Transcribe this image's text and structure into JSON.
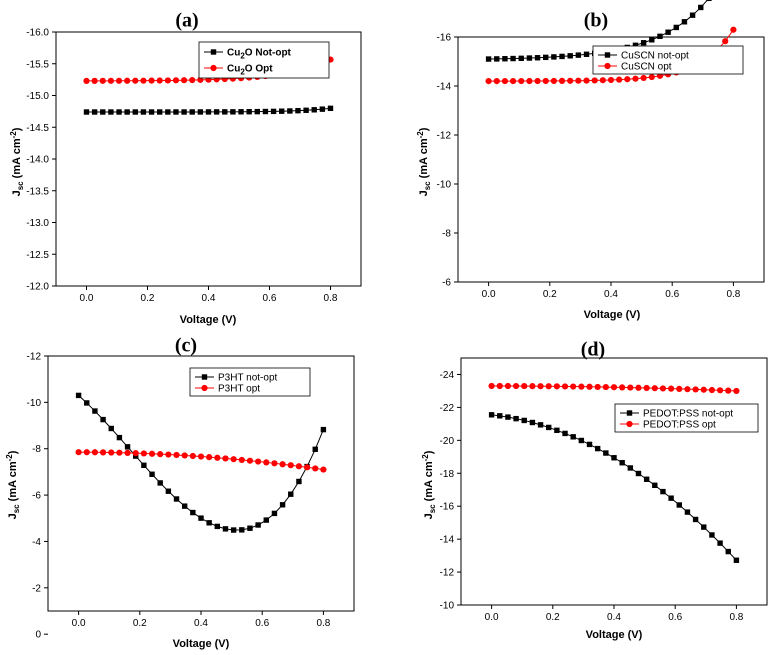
{
  "chart_data": [
    {
      "type": "line",
      "panel": "(a)",
      "xlabel": "Voltage (V)",
      "ylabel": "J_sc (mA cm^-2)",
      "ylabel_parts": {
        "j": "J",
        "sub": "sc",
        "unit": " (mA cm",
        "sup": "-2",
        "close": ")"
      },
      "xlim": [
        -0.1,
        0.9
      ],
      "ylim": [
        -12.0,
        -16.0
      ],
      "y_inverted": true,
      "xticks": [
        0.0,
        0.2,
        0.4,
        0.6,
        0.8
      ],
      "xtick_labels": [
        "0.0",
        "0.2",
        "0.4",
        "0.6",
        "0.8"
      ],
      "yticks": [
        -12.0,
        -12.5,
        -13.0,
        -13.5,
        -14.0,
        -14.5,
        -15.0,
        -15.5,
        -16.0
      ],
      "ytick_labels": [
        "-12.0",
        "-12.5",
        "-13.0",
        "-13.5",
        "-14.0",
        "-14.5",
        "-15.0",
        "-15.5",
        "-16.0"
      ],
      "legend_position": "top-right",
      "legend_bold": true,
      "series": [
        {
          "name": "Cu2O Not-opt",
          "label_parts": {
            "pre": "Cu",
            "sub": "2",
            "post": "O Not-opt"
          },
          "color": "#000000",
          "marker": "square",
          "fn": {
            "kind": "exp",
            "v0": -14.74,
            "a": -2.9e-05,
            "b": 9.5
          }
        },
        {
          "name": "Cu2O Opt",
          "label_parts": {
            "pre": "Cu",
            "sub": "2",
            "post": "O Opt"
          },
          "color": "#ff0000",
          "marker": "circle",
          "fn": {
            "kind": "exp",
            "v0": -15.23,
            "a": -0.00135,
            "b": 6.9
          }
        }
      ]
    },
    {
      "type": "line",
      "panel": "(b)",
      "xlabel": "Voltage (V)",
      "ylabel": "J_sc (mA cm^-2)",
      "ylabel_parts": {
        "j": "J",
        "sub": "sc",
        "unit": " (mA cm",
        "sup": "-2",
        "close": ")"
      },
      "xlim": [
        -0.1,
        0.9
      ],
      "ylim": [
        -6,
        -16
      ],
      "y_inverted": true,
      "xticks": [
        0.0,
        0.2,
        0.4,
        0.6,
        0.8
      ],
      "xtick_labels": [
        "0.0",
        "0.2",
        "0.4",
        "0.6",
        "0.8"
      ],
      "yticks": [
        -6,
        -8,
        -10,
        -12,
        -14,
        -16
      ],
      "ytick_labels": [
        "-6",
        "-8",
        "-10",
        "-12",
        "-14",
        "-16"
      ],
      "legend_position": "top-right",
      "legend_bold": false,
      "series": [
        {
          "name": "CuSCN not-opt",
          "label_parts": {
            "pre": "CuSCN not-opt",
            "sub": "",
            "post": ""
          },
          "color": "#000000",
          "marker": "square",
          "fn": {
            "kind": "exp",
            "v0": -15.1,
            "a": -0.0334,
            "b": 6.0
          }
        },
        {
          "name": "CuSCN opt",
          "label_parts": {
            "pre": "CuSCN opt",
            "sub": "",
            "post": ""
          },
          "color": "#ff0000",
          "marker": "circle",
          "fn": {
            "kind": "exp",
            "v0": -14.2,
            "a": -0.00105,
            "b": 9.5
          }
        }
      ]
    },
    {
      "type": "line",
      "panel": "(c)",
      "xlabel": "Voltage (V)",
      "ylabel": "J_sc (mA cm^-2)",
      "ylabel_parts": {
        "j": "J",
        "sub": "sc",
        "unit": " (mA cm",
        "sup": "-2",
        "close": ")"
      },
      "xlim": [
        -0.1,
        0.9
      ],
      "ylim": [
        -1,
        -12
      ],
      "y_inverted": true,
      "xticks": [
        0.0,
        0.2,
        0.4,
        0.6,
        0.8
      ],
      "xtick_labels": [
        "0.0",
        "0.2",
        "0.4",
        "0.6",
        "0.8"
      ],
      "yticks": [
        0,
        -2,
        -4,
        -6,
        -8,
        -10,
        -12
      ],
      "ytick_labels": [
        "0",
        "-2",
        "-4",
        "-6",
        "-8",
        "-10",
        "-12"
      ],
      "legend_position": "top-right",
      "legend_bold": false,
      "series": [
        {
          "name": "P3HT not-opt",
          "label_parts": {
            "pre": "P3HT not-opt",
            "sub": "",
            "post": ""
          },
          "color": "#000000",
          "marker": "square",
          "fn": {
            "kind": "poly",
            "c": [
              -10.3,
              11.7,
              20.0,
              -40.4
            ]
          }
        },
        {
          "name": "P3HT opt",
          "label_parts": {
            "pre": "P3HT opt",
            "sub": "",
            "post": ""
          },
          "color": "#ff0000",
          "marker": "circle",
          "fn": {
            "kind": "poly",
            "c": [
              -7.85,
              0,
              1.17,
              0
            ]
          }
        }
      ]
    },
    {
      "type": "line",
      "panel": "(d)",
      "xlabel": "Voltage (V)",
      "ylabel": "J_sc (mA cm^-2)",
      "ylabel_parts": {
        "j": "J",
        "sub": "sc",
        "unit": " (mA cm",
        "sup": "-2",
        "close": ")"
      },
      "xlim": [
        -0.1,
        0.9
      ],
      "ylim": [
        -10,
        -25
      ],
      "y_inverted": true,
      "xticks": [
        0.0,
        0.2,
        0.4,
        0.6,
        0.8
      ],
      "xtick_labels": [
        "0.0",
        "0.2",
        "0.4",
        "0.6",
        "0.8"
      ],
      "yticks": [
        -10,
        -12,
        -14,
        -16,
        -18,
        -20,
        -22,
        -24
      ],
      "ytick_labels": [
        "-10",
        "-12",
        "-14",
        "-16",
        "-18",
        "-20",
        "-22",
        "-24"
      ],
      "legend_position": "right",
      "legend_bold": false,
      "series": [
        {
          "name": "PEDOT:PSS not-opt",
          "label_parts": {
            "pre": "PEDOT:PSS not-opt",
            "sub": "",
            "post": ""
          },
          "color": "#000000",
          "marker": "square",
          "fn": {
            "kind": "poly",
            "c": [
              -21.55,
              2.0,
              11.3,
              0
            ]
          }
        },
        {
          "name": "PEDOT:PSS opt",
          "label_parts": {
            "pre": "PEDOT:PSS opt",
            "sub": "",
            "post": ""
          },
          "color": "#ff0000",
          "marker": "circle",
          "fn": {
            "kind": "poly",
            "c": [
              -23.3,
              0,
              0.47,
              0
            ]
          }
        }
      ]
    }
  ]
}
